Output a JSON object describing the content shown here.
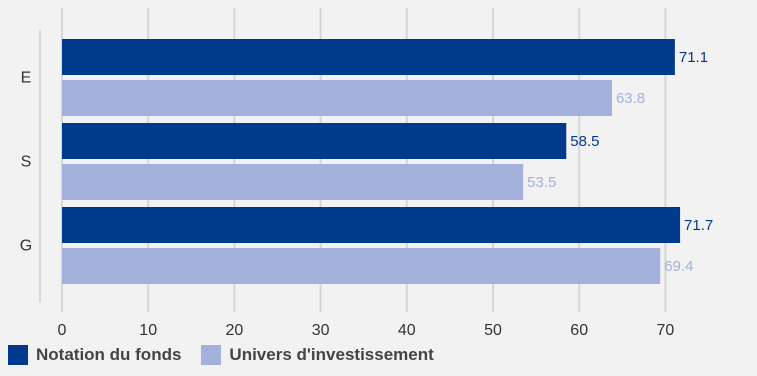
{
  "chart_data": {
    "type": "bar",
    "orientation": "horizontal",
    "categories": [
      "E",
      "S",
      "G"
    ],
    "series": [
      {
        "name": "Notation du fonds",
        "values": [
          71.1,
          58.5,
          71.7
        ],
        "color": "#003a8c",
        "label_color": "#003a8c"
      },
      {
        "name": "Univers d'investissement",
        "values": [
          63.8,
          53.5,
          69.4
        ],
        "color": "#a3b1dc",
        "label_color": "#a3b1dc"
      }
    ],
    "xlim": [
      0,
      70
    ],
    "xticks": [
      "0",
      "10",
      "20",
      "30",
      "40",
      "50",
      "60",
      "70"
    ],
    "grid": true,
    "legend_position": "bottom-left",
    "title": "",
    "xlabel": "",
    "ylabel": ""
  }
}
